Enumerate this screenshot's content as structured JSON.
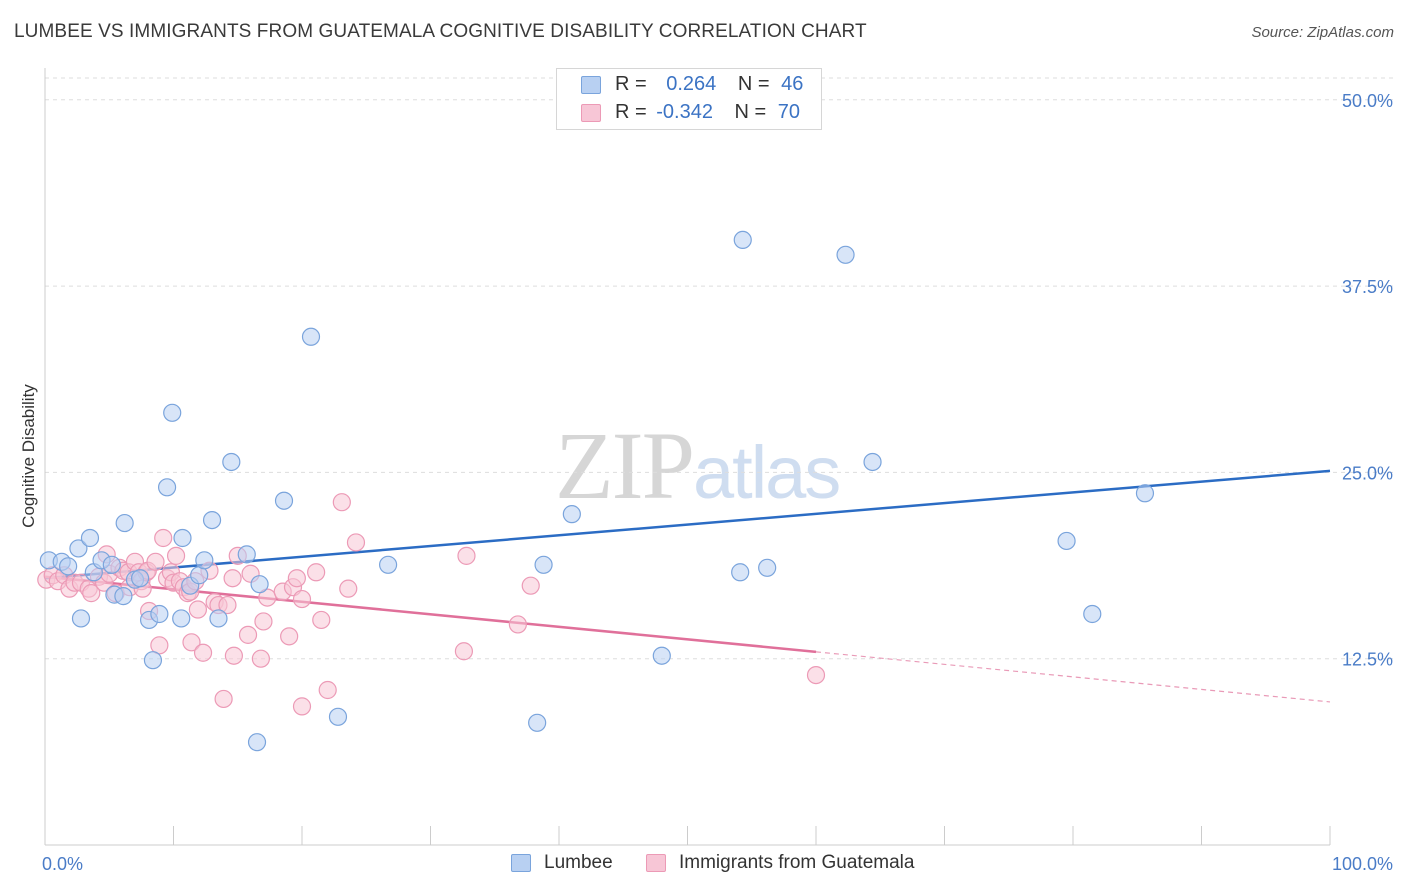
{
  "title": "LUMBEE VS IMMIGRANTS FROM GUATEMALA COGNITIVE DISABILITY CORRELATION CHART",
  "source": "Source: ZipAtlas.com",
  "watermark": {
    "zip": "ZIP",
    "atlas": "atlas"
  },
  "legend_top": {
    "rows": [
      {
        "r_label": "R =",
        "r_value": "0.264",
        "n_label": "N =",
        "n_value": "46"
      },
      {
        "r_label": "R =",
        "r_value": "-0.342",
        "n_label": "N =",
        "n_value": "70"
      }
    ]
  },
  "legend_bottom": {
    "series1": "Lumbee",
    "series2": "Immigrants from Guatemala"
  },
  "colors": {
    "lumbee_fill": "#b8d0f2",
    "lumbee_stroke": "#7aa4dc",
    "lumbee_line": "#2b6cc4",
    "guatemala_fill": "#f7c6d6",
    "guatemala_stroke": "#ec9ab6",
    "guatemala_line": "#e0709a",
    "tick_text": "#4a7cc7",
    "grid": "#dddddd"
  },
  "chart_data": {
    "type": "scatter",
    "title": "LUMBEE VS IMMIGRANTS FROM GUATEMALA COGNITIVE DISABILITY CORRELATION CHART",
    "xlabel": "",
    "ylabel": "Cognitive Disability",
    "xlim": [
      0,
      100
    ],
    "ylim": [
      0,
      52
    ],
    "x_tick_labels": [
      {
        "value": 0,
        "label": "0.0%"
      },
      {
        "value": 100,
        "label": "100.0%"
      }
    ],
    "y_tick_labels": [
      {
        "value": 12.5,
        "label": "12.5%"
      },
      {
        "value": 25.0,
        "label": "25.0%"
      },
      {
        "value": 37.5,
        "label": "37.5%"
      },
      {
        "value": 50.0,
        "label": "50.0%"
      }
    ],
    "grid": true,
    "legend_position": "top-center",
    "series": [
      {
        "name": "Lumbee",
        "stats": {
          "R": 0.264,
          "N": 46
        },
        "trend": {
          "x0": 0,
          "y0": 17.9,
          "x1": 100,
          "y1": 25.1,
          "dashed_from": null
        },
        "points": [
          [
            0.3,
            19.1
          ],
          [
            1.3,
            19.0
          ],
          [
            1.8,
            18.7
          ],
          [
            2.6,
            19.9
          ],
          [
            2.8,
            15.2
          ],
          [
            3.5,
            20.6
          ],
          [
            3.8,
            18.3
          ],
          [
            4.4,
            19.1
          ],
          [
            5.2,
            18.8
          ],
          [
            5.4,
            16.8
          ],
          [
            6.1,
            16.7
          ],
          [
            6.2,
            21.6
          ],
          [
            7.0,
            17.8
          ],
          [
            7.4,
            17.9
          ],
          [
            8.1,
            15.1
          ],
          [
            8.4,
            12.4
          ],
          [
            8.9,
            15.5
          ],
          [
            9.5,
            24.0
          ],
          [
            9.9,
            29.0
          ],
          [
            10.6,
            15.2
          ],
          [
            10.7,
            20.6
          ],
          [
            11.3,
            17.4
          ],
          [
            12.0,
            18.1
          ],
          [
            12.4,
            19.1
          ],
          [
            13.0,
            21.8
          ],
          [
            13.5,
            15.2
          ],
          [
            14.5,
            25.7
          ],
          [
            15.7,
            19.5
          ],
          [
            16.5,
            6.9
          ],
          [
            16.7,
            17.5
          ],
          [
            18.6,
            23.1
          ],
          [
            20.7,
            34.1
          ],
          [
            22.8,
            8.6
          ],
          [
            26.7,
            18.8
          ],
          [
            38.3,
            8.2
          ],
          [
            38.8,
            18.8
          ],
          [
            41.0,
            22.2
          ],
          [
            48.0,
            12.7
          ],
          [
            54.1,
            18.3
          ],
          [
            54.3,
            40.6
          ],
          [
            56.2,
            18.6
          ],
          [
            62.3,
            39.6
          ],
          [
            64.4,
            25.7
          ],
          [
            79.5,
            20.4
          ],
          [
            81.5,
            15.5
          ],
          [
            85.6,
            23.6
          ]
        ]
      },
      {
        "name": "Immigrants from Guatemala",
        "stats": {
          "R": -0.342,
          "N": 70
        },
        "trend": {
          "x0": 0,
          "y0": 18.0,
          "x1": 100,
          "y1": 9.6,
          "dashed_from": 60.0
        },
        "points": [
          [
            0.1,
            17.8
          ],
          [
            0.6,
            18.1
          ],
          [
            1.0,
            17.7
          ],
          [
            1.5,
            18.1
          ],
          [
            1.9,
            17.2
          ],
          [
            2.3,
            17.6
          ],
          [
            2.8,
            17.6
          ],
          [
            3.4,
            17.2
          ],
          [
            3.6,
            16.9
          ],
          [
            4.2,
            18.0
          ],
          [
            4.6,
            17.6
          ],
          [
            4.8,
            19.5
          ],
          [
            5.0,
            18.2
          ],
          [
            5.5,
            16.9
          ],
          [
            5.8,
            18.6
          ],
          [
            6.1,
            18.4
          ],
          [
            6.5,
            18.3
          ],
          [
            6.6,
            17.3
          ],
          [
            7.0,
            19.0
          ],
          [
            7.3,
            18.3
          ],
          [
            7.5,
            17.7
          ],
          [
            7.6,
            17.2
          ],
          [
            7.9,
            18.3
          ],
          [
            8.0,
            18.4
          ],
          [
            8.1,
            15.7
          ],
          [
            8.6,
            19.0
          ],
          [
            8.9,
            13.4
          ],
          [
            9.2,
            20.6
          ],
          [
            9.5,
            17.9
          ],
          [
            9.8,
            18.3
          ],
          [
            10.0,
            17.6
          ],
          [
            10.2,
            19.4
          ],
          [
            10.5,
            17.7
          ],
          [
            10.8,
            17.3
          ],
          [
            11.1,
            16.9
          ],
          [
            11.3,
            17.0
          ],
          [
            11.4,
            13.6
          ],
          [
            11.7,
            17.7
          ],
          [
            11.9,
            15.8
          ],
          [
            12.3,
            12.9
          ],
          [
            12.8,
            18.4
          ],
          [
            13.2,
            16.3
          ],
          [
            13.5,
            16.1
          ],
          [
            13.9,
            9.8
          ],
          [
            14.2,
            16.1
          ],
          [
            14.6,
            17.9
          ],
          [
            14.7,
            12.7
          ],
          [
            15.0,
            19.4
          ],
          [
            15.8,
            14.1
          ],
          [
            16.0,
            18.2
          ],
          [
            16.8,
            12.5
          ],
          [
            17.0,
            15.0
          ],
          [
            17.3,
            16.6
          ],
          [
            18.5,
            17.0
          ],
          [
            19.0,
            14.0
          ],
          [
            19.3,
            17.3
          ],
          [
            19.6,
            17.9
          ],
          [
            20.0,
            16.5
          ],
          [
            20.0,
            9.3
          ],
          [
            21.1,
            18.3
          ],
          [
            21.5,
            15.1
          ],
          [
            22.0,
            10.4
          ],
          [
            23.1,
            23.0
          ],
          [
            23.6,
            17.2
          ],
          [
            24.2,
            20.3
          ],
          [
            32.6,
            13.0
          ],
          [
            32.8,
            19.4
          ],
          [
            36.8,
            14.8
          ],
          [
            37.8,
            17.4
          ],
          [
            60.0,
            11.4
          ]
        ]
      }
    ]
  }
}
